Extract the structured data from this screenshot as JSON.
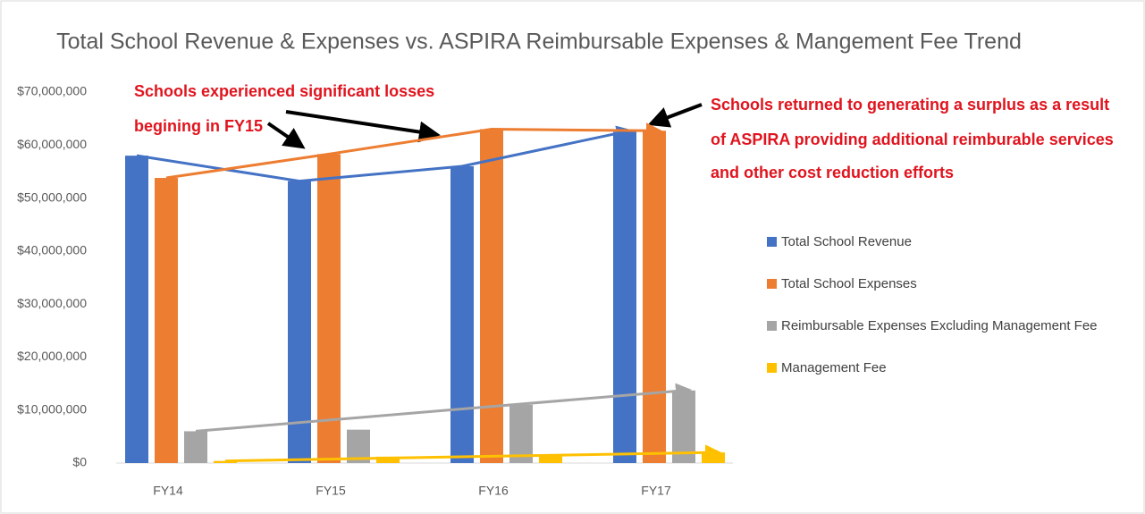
{
  "chart_data": {
    "type": "bar",
    "title": "Total School Revenue & Expenses vs. ASPIRA Reimbursable Expenses & Mangement Fee Trend",
    "categories": [
      "FY14",
      "FY15",
      "FY16",
      "FY17"
    ],
    "series": [
      {
        "name": "Total School Revenue",
        "color": "#4472c4",
        "values": [
          58000000,
          53200000,
          56000000,
          62500000
        ]
      },
      {
        "name": "Total School Expenses",
        "color": "#ed7d31",
        "values": [
          53800000,
          58300000,
          63000000,
          62700000
        ]
      },
      {
        "name": "Reimbursable Expenses Excluding Management Fee",
        "color": "#a5a5a5",
        "values": [
          6000000,
          6300000,
          11000000,
          13700000
        ]
      },
      {
        "name": "Management Fee",
        "color": "#ffc000",
        "values": [
          400000,
          1200000,
          1500000,
          2000000
        ]
      }
    ],
    "ylim": [
      0,
      70000000
    ],
    "yticks": [
      {
        "value": 0,
        "label": "$0"
      },
      {
        "value": 10000000,
        "label": "$10,000,000"
      },
      {
        "value": 20000000,
        "label": "$20,000,000"
      },
      {
        "value": 30000000,
        "label": "$30,000,000"
      },
      {
        "value": 40000000,
        "label": "$40,000,000"
      },
      {
        "value": 50000000,
        "label": "$50,000,000"
      },
      {
        "value": 60000000,
        "label": "$60,000,000"
      },
      {
        "value": 70000000,
        "label": "$70,000,000"
      }
    ],
    "grid": false,
    "legend": "right",
    "annotations": [
      "Schools experienced significant losses",
      "begining in FY15",
      "Schools returned to generating a surplus as a result",
      "of ASPIRA providing additional reimburable services",
      "and other cost reduction efforts"
    ]
  }
}
